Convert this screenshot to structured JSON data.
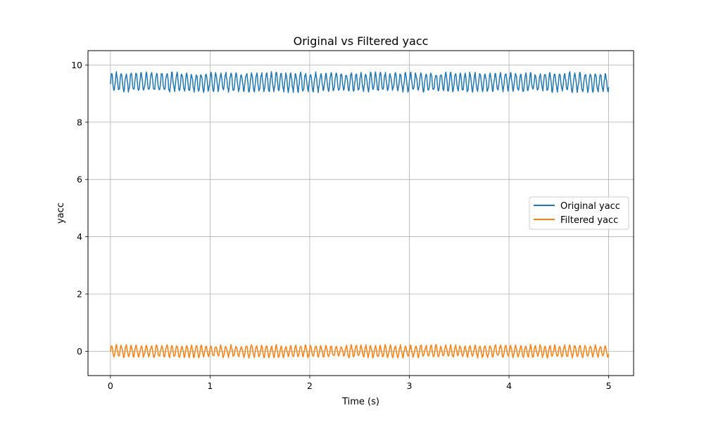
{
  "chart_data": {
    "type": "line",
    "title": "Original vs Filtered yacc",
    "xlabel": "Time (s)",
    "ylabel": "yacc",
    "xlim": [
      -0.225,
      5.25
    ],
    "ylim": [
      -0.85,
      10.5
    ],
    "xticks": [
      0,
      1,
      2,
      3,
      4,
      5
    ],
    "yticks": [
      0,
      2,
      4,
      6,
      8,
      10
    ],
    "xtick_labels": [
      "0",
      "1",
      "2",
      "3",
      "4",
      "5"
    ],
    "ytick_labels": [
      "0",
      "2",
      "4",
      "6",
      "8",
      "10"
    ],
    "grid": true,
    "legend_position": "center-right",
    "sampling": {
      "t_start": 0.0,
      "t_end": 5.0,
      "n_points": 1000
    },
    "series": [
      {
        "name": "Original yacc",
        "color": "#1f77b4",
        "mean": 9.4,
        "osc_amplitude": 0.3,
        "osc_frequency_hz": 20,
        "noise_amplitude": 0.07,
        "min": 8.9,
        "max": 10.0
      },
      {
        "name": "Filtered yacc",
        "color": "#ff7f0e",
        "mean": 0.0,
        "osc_amplitude": 0.19,
        "osc_frequency_hz": 20,
        "noise_amplitude": 0.05,
        "min": -0.35,
        "max": 0.3
      }
    ]
  }
}
